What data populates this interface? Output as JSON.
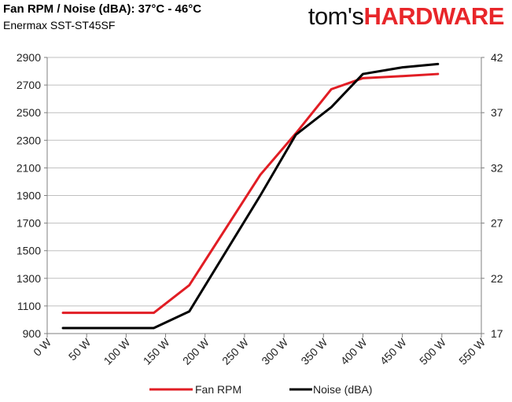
{
  "header": {
    "title": "Fan RPM / Noise (dBA): 37°C - 46°C",
    "subtitle": "Enermax SST-ST45SF",
    "logo_part1": "tom's",
    "logo_part2": "HARDWARE"
  },
  "colors": {
    "fan_rpm": "#e11d24",
    "noise": "#000000",
    "grid": "#bfbfbf",
    "axis": "#7f7f7f"
  },
  "chart_data": {
    "type": "line",
    "x": [
      20,
      135,
      180,
      270,
      315,
      360,
      400,
      450,
      495
    ],
    "xlim": [
      0,
      550
    ],
    "xticks": [
      0,
      50,
      100,
      150,
      200,
      250,
      300,
      350,
      400,
      450,
      500,
      550
    ],
    "x_tick_labels": [
      "0 W",
      "50 W",
      "100 W",
      "150 W",
      "200 W",
      "250 W",
      "300 W",
      "350 W",
      "400 W",
      "450 W",
      "500 W",
      "550 W"
    ],
    "ylim_left": [
      900,
      2900
    ],
    "yticks_left": [
      900,
      1100,
      1300,
      1500,
      1700,
      1900,
      2100,
      2300,
      2500,
      2700,
      2900
    ],
    "ylim_right": [
      17,
      42
    ],
    "yticks_right": [
      17,
      22,
      27,
      32,
      37,
      42
    ],
    "grid": "horizontal",
    "legend_position": "bottom",
    "series": [
      {
        "name": "Fan RPM",
        "axis": "left",
        "values": [
          1050,
          1050,
          1250,
          2050,
          2350,
          2670,
          2750,
          2765,
          2780
        ]
      },
      {
        "name": "Noise (dBA)",
        "axis": "right",
        "values": [
          17.5,
          17.5,
          19.0,
          29.5,
          35.0,
          37.5,
          40.5,
          41.1,
          41.4
        ]
      }
    ]
  }
}
